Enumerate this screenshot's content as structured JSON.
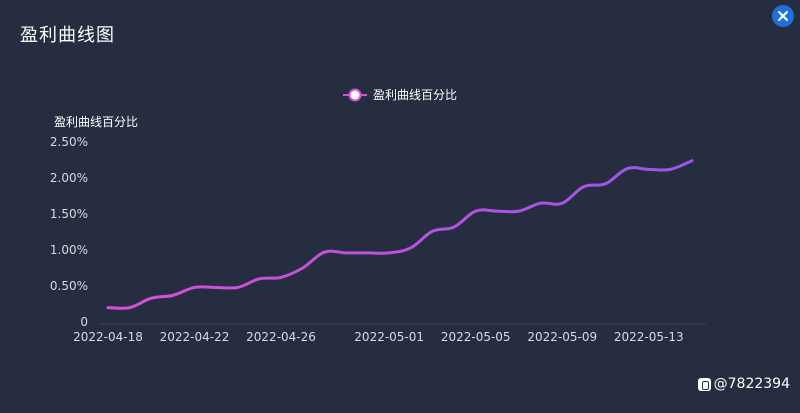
{
  "window": {
    "title": "盈利曲线图",
    "close_icon": "close-icon"
  },
  "watermark": {
    "text": "@7822394",
    "icon": "app-logo-icon"
  },
  "colors": {
    "background": "#262d41",
    "line_start": "#d94fd6",
    "line_end": "#9a55e8",
    "axis_text": "#d8dae2",
    "close_button": "#1f6fd6"
  },
  "chart_data": {
    "type": "line",
    "ylabel": "盈利曲线百分比",
    "legend": "top-center",
    "series": [
      {
        "name": "盈利曲线百分比",
        "x": [
          "2022-04-18",
          "2022-04-19",
          "2022-04-20",
          "2022-04-21",
          "2022-04-22",
          "2022-04-23",
          "2022-04-24",
          "2022-04-25",
          "2022-04-26",
          "2022-04-27",
          "2022-04-28",
          "2022-04-29",
          "2022-04-30",
          "2022-05-01",
          "2022-05-02",
          "2022-05-03",
          "2022-05-04",
          "2022-05-05",
          "2022-05-06",
          "2022-05-07",
          "2022-05-08",
          "2022-05-09",
          "2022-05-10",
          "2022-05-11",
          "2022-05-12",
          "2022-05-13",
          "2022-05-14",
          "2022-05-15"
        ],
        "values": [
          0.2,
          0.2,
          0.33,
          0.37,
          0.48,
          0.48,
          0.48,
          0.6,
          0.62,
          0.75,
          0.97,
          0.96,
          0.96,
          0.96,
          1.03,
          1.26,
          1.32,
          1.54,
          1.54,
          1.54,
          1.65,
          1.65,
          1.88,
          1.92,
          2.13,
          2.12,
          2.12,
          2.24
        ]
      }
    ],
    "x_ticks": [
      "2022-04-18",
      "2022-04-22",
      "2022-04-26",
      "2022-05-01",
      "2022-05-05",
      "2022-05-09",
      "2022-05-13"
    ],
    "y_ticks": [
      {
        "value": 0,
        "label": "0"
      },
      {
        "value": 0.5,
        "label": "0.50%"
      },
      {
        "value": 1.0,
        "label": "1.00%"
      },
      {
        "value": 1.5,
        "label": "1.50%"
      },
      {
        "value": 2.0,
        "label": "2.00%"
      },
      {
        "value": 2.5,
        "label": "2.50%"
      }
    ],
    "ylim": [
      0,
      2.5
    ],
    "grid": false
  }
}
